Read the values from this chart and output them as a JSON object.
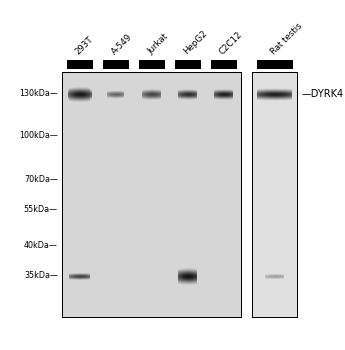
{
  "bg_color": "#ffffff",
  "blot_bg1": "#d4d4d4",
  "blot_bg2": "#dedede",
  "title_labels": [
    "293T",
    "A-549",
    "Jurkat",
    "HepG2",
    "C2C12",
    "Rat testis"
  ],
  "mw_labels": [
    "130kDa",
    "100kDa",
    "70kDa",
    "55kDa",
    "40kDa",
    "35kDa"
  ],
  "mw_kda": [
    130,
    100,
    70,
    55,
    40,
    35
  ],
  "annotation_label": "DYRK4",
  "fig_width": 3.45,
  "fig_height": 3.5,
  "dpi": 100
}
